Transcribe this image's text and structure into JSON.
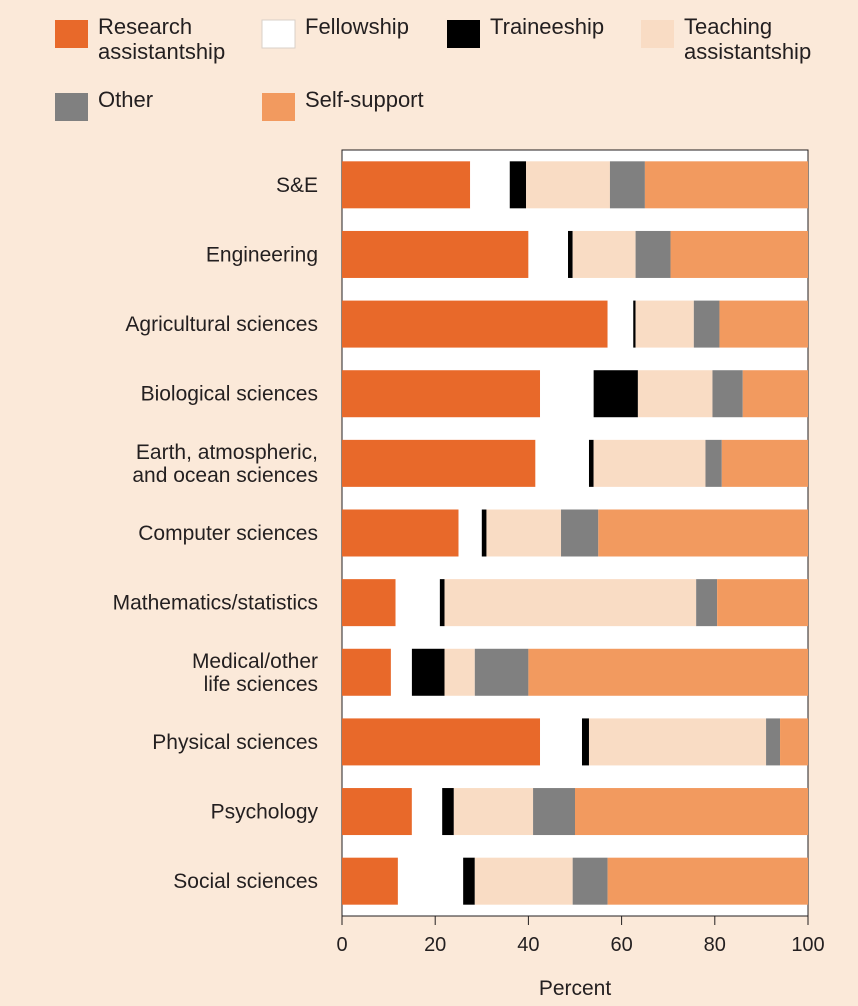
{
  "chart_data": {
    "type": "bar",
    "orientation": "horizontal",
    "stacked": true,
    "xlabel": "Percent",
    "xlim": [
      0,
      100
    ],
    "xticks": [
      "0",
      "20",
      "40",
      "60",
      "80",
      "100"
    ],
    "legend_position": "top",
    "categories": [
      "S&E",
      "Engineering",
      "Agricultural sciences",
      "Biological sciences",
      "Earth, atmospheric,\nand ocean sciences",
      "Computer sciences",
      "Mathematics/statistics",
      "Medical/other\nlife sciences",
      "Physical sciences",
      "Psychology",
      "Social sciences"
    ],
    "series": [
      {
        "name": "Research\nassistantship",
        "color": "#e8692a",
        "values": [
          27.5,
          40,
          57,
          42.5,
          41.5,
          25,
          11.5,
          10.5,
          42.5,
          15,
          12
        ]
      },
      {
        "name": "Fellowship",
        "color": "#ffffff",
        "values": [
          8.5,
          8.5,
          5.5,
          11.5,
          11.5,
          5,
          9.5,
          4.5,
          9,
          6.5,
          14
        ]
      },
      {
        "name": "Traineeship",
        "color": "#000000",
        "values": [
          3.5,
          1,
          0.5,
          9.5,
          1,
          1,
          1,
          7,
          1.5,
          2.5,
          2.5
        ]
      },
      {
        "name": "Teaching\nassistantship",
        "color": "#f9dcc4",
        "values": [
          18,
          13.5,
          12.5,
          16,
          24,
          16,
          54,
          6.5,
          38,
          17,
          21
        ]
      },
      {
        "name": "Other",
        "color": "#808080",
        "values": [
          7.5,
          7.5,
          5.5,
          6.5,
          3.5,
          8,
          4.5,
          11.5,
          3,
          9,
          7.5
        ]
      },
      {
        "name": "Self-support",
        "color": "#f29a5f",
        "values": [
          35,
          29.5,
          19,
          14,
          18.5,
          45,
          19.5,
          60,
          6,
          50,
          43
        ]
      }
    ]
  }
}
